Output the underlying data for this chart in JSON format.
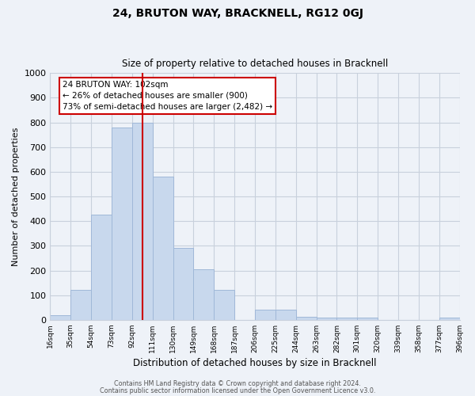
{
  "title": "24, BRUTON WAY, BRACKNELL, RG12 0GJ",
  "subtitle": "Size of property relative to detached houses in Bracknell",
  "xlabel": "Distribution of detached houses by size in Bracknell",
  "ylabel": "Number of detached properties",
  "bar_edges": [
    16,
    35,
    54,
    73,
    92,
    111,
    130,
    149,
    168,
    187,
    206,
    225,
    244,
    263,
    282,
    301,
    320,
    339,
    358,
    377,
    396
  ],
  "bar_heights": [
    18,
    120,
    425,
    780,
    800,
    580,
    290,
    205,
    120,
    0,
    40,
    40,
    12,
    10,
    8,
    8,
    0,
    0,
    0,
    8
  ],
  "bar_color": "#c8d8ed",
  "bar_edge_color": "#a0b8d8",
  "property_line_x": 102,
  "property_line_color": "#cc0000",
  "ylim": [
    0,
    1000
  ],
  "yticks": [
    0,
    100,
    200,
    300,
    400,
    500,
    600,
    700,
    800,
    900,
    1000
  ],
  "tick_labels": [
    "16sqm",
    "35sqm",
    "54sqm",
    "73sqm",
    "92sqm",
    "111sqm",
    "130sqm",
    "149sqm",
    "168sqm",
    "187sqm",
    "206sqm",
    "225sqm",
    "244sqm",
    "263sqm",
    "282sqm",
    "301sqm",
    "320sqm",
    "339sqm",
    "358sqm",
    "377sqm",
    "396sqm"
  ],
  "annotation_title": "24 BRUTON WAY: 102sqm",
  "annotation_line1": "← 26% of detached houses are smaller (900)",
  "annotation_line2": "73% of semi-detached houses are larger (2,482) →",
  "footnote1": "Contains HM Land Registry data © Crown copyright and database right 2024.",
  "footnote2": "Contains public sector information licensed under the Open Government Licence v3.0.",
  "bg_color": "#eef2f8",
  "plot_bg_color": "#eef2f8",
  "grid_color": "#c8d0dc"
}
